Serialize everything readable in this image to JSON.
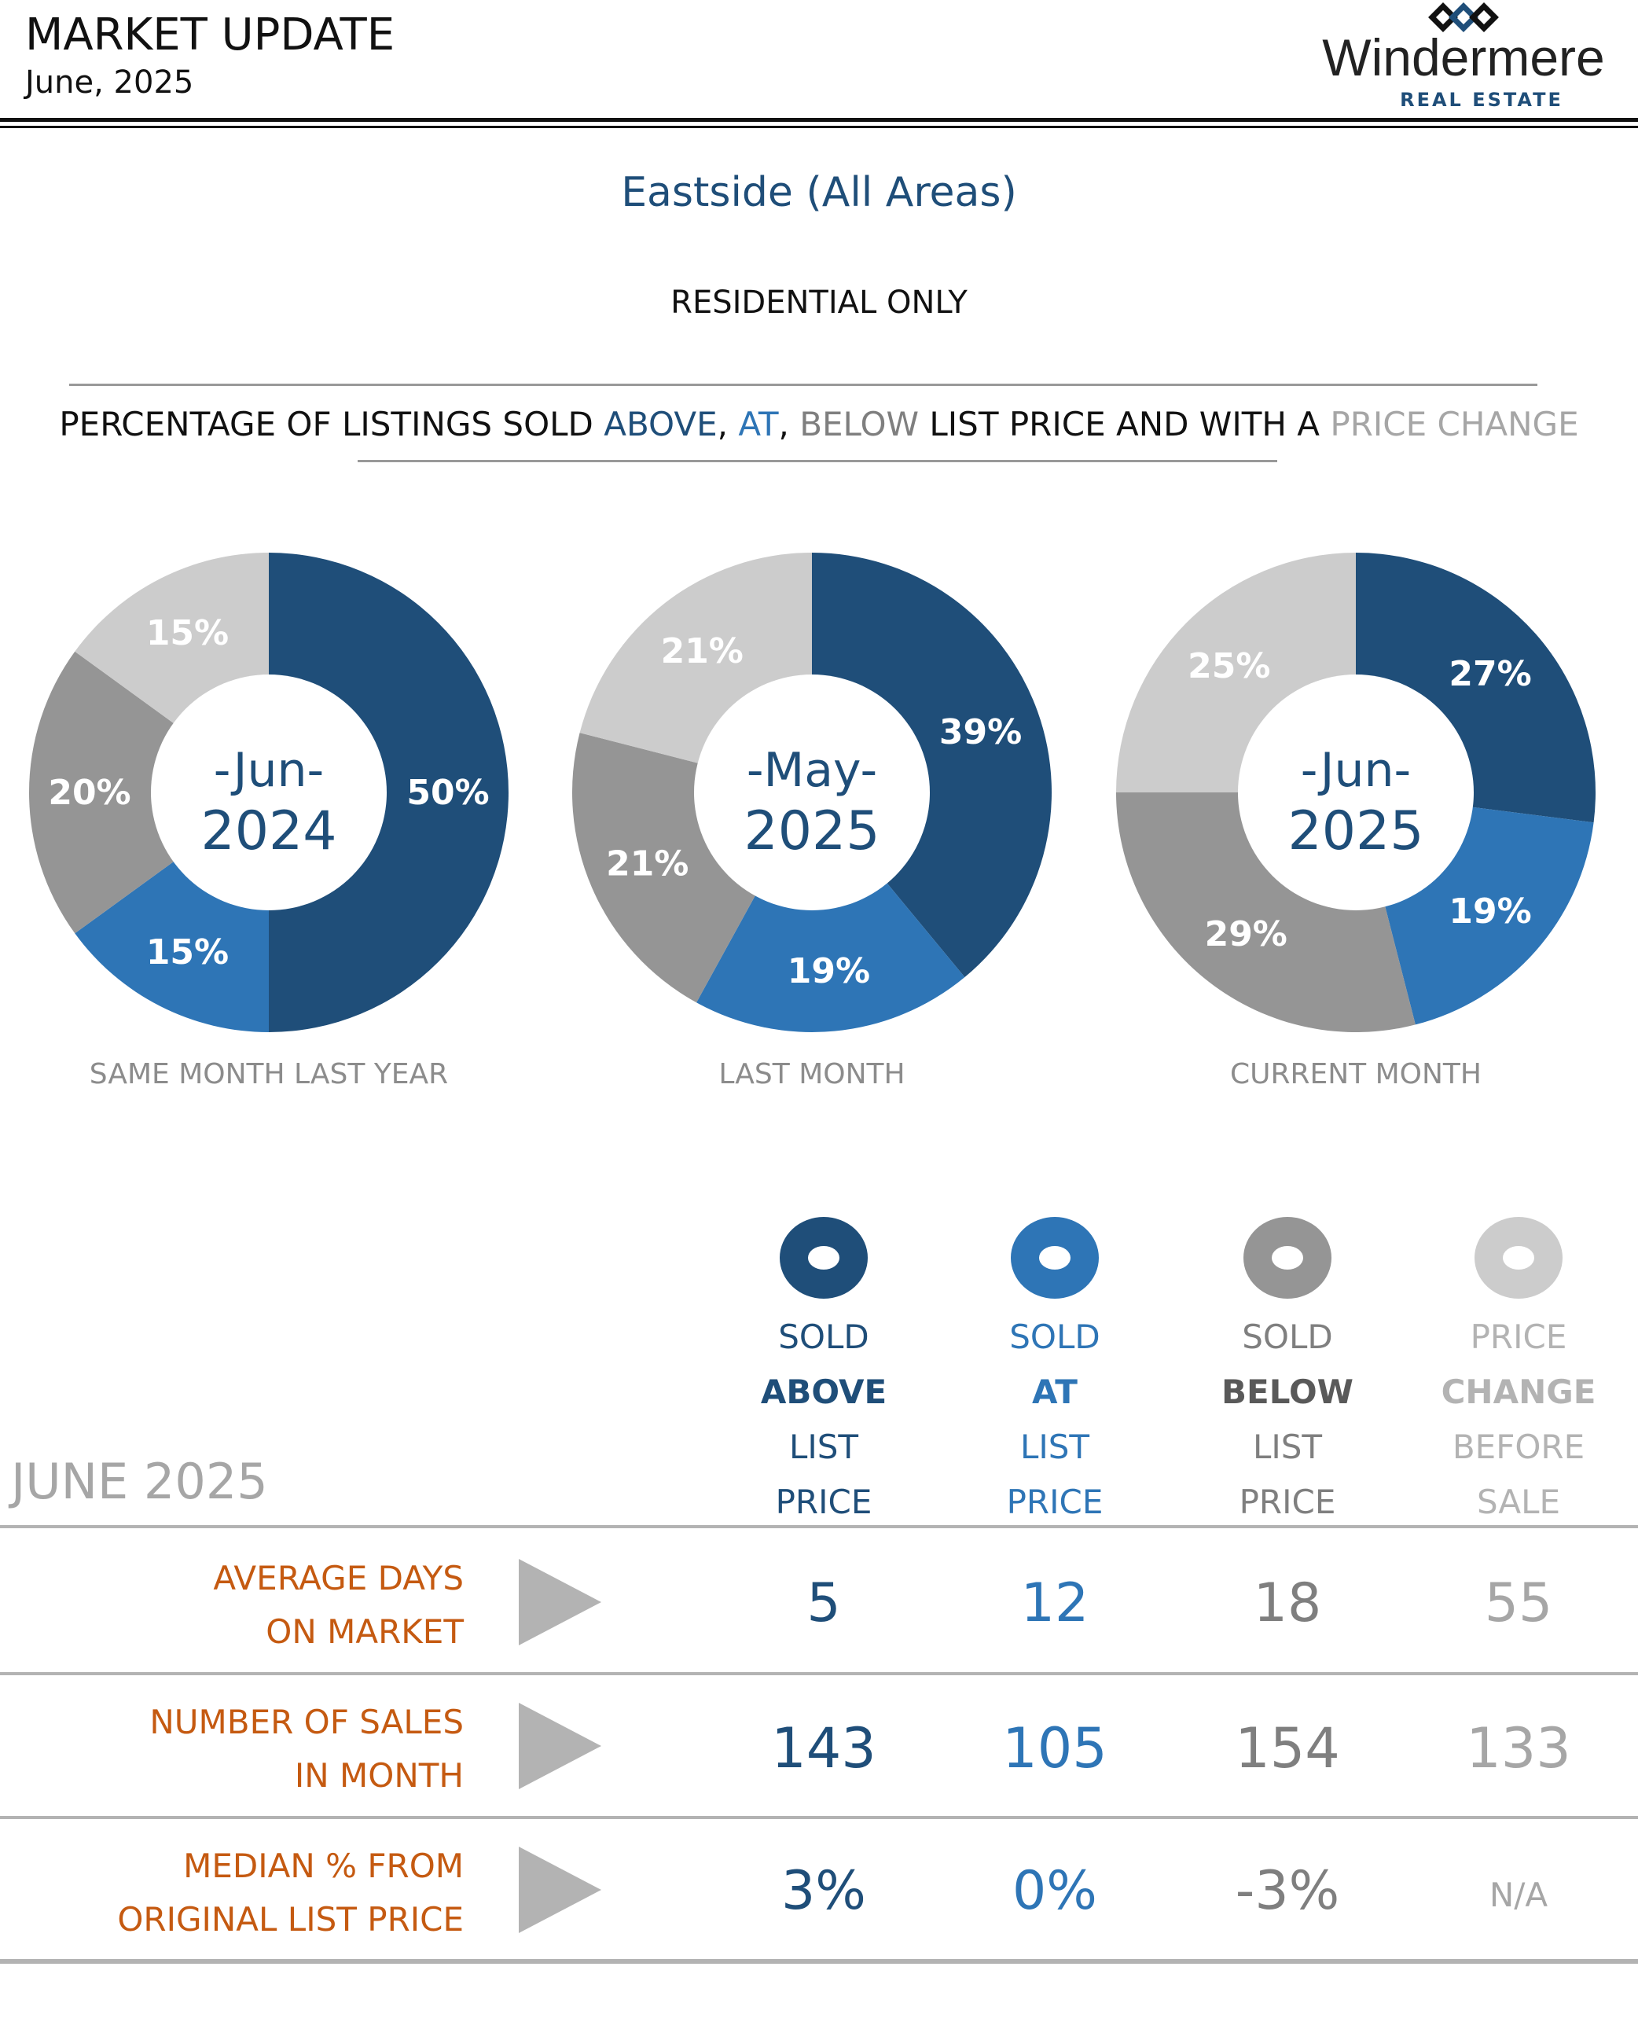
{
  "header": {
    "title": "MARKET UPDATE",
    "date": "June, 2025",
    "brand_name": "Windermere",
    "brand_tagline": "REAL ESTATE",
    "brand_icon": "windermere-diamond-logo-icon"
  },
  "area": "Eastside (All Areas)",
  "subtitle": "RESIDENTIAL ONLY",
  "section_title": {
    "prefix": "PERCENTAGE OF LISTINGS SOLD ",
    "above": "ABOVE",
    "sep1": ", ",
    "at": "AT",
    "sep2": ", ",
    "below": "BELOW",
    "middle": " LIST PRICE AND WITH A ",
    "change": "PRICE CHANGE"
  },
  "colors": {
    "above": "#1f4e79",
    "at": "#2e75b6",
    "below": "#959595",
    "change": "#cccccc",
    "accent_orange": "#c55a11"
  },
  "chart_data": [
    {
      "type": "pie",
      "center_label_top": "-Jun-",
      "center_label_bottom": "2024",
      "caption": "SAME MONTH LAST YEAR",
      "slices": [
        {
          "category": "above",
          "value": 50,
          "label": "50%"
        },
        {
          "category": "at",
          "value": 15,
          "label": "15%"
        },
        {
          "category": "below",
          "value": 20,
          "label": "20%"
        },
        {
          "category": "change",
          "value": 15,
          "label": "15%"
        }
      ]
    },
    {
      "type": "pie",
      "center_label_top": "-May-",
      "center_label_bottom": "2025",
      "caption": "LAST MONTH",
      "slices": [
        {
          "category": "above",
          "value": 39,
          "label": "39%"
        },
        {
          "category": "at",
          "value": 19,
          "label": "19%"
        },
        {
          "category": "below",
          "value": 21,
          "label": "21%"
        },
        {
          "category": "change",
          "value": 21,
          "label": "21%"
        }
      ]
    },
    {
      "type": "pie",
      "center_label_top": "-Jun-",
      "center_label_bottom": "2025",
      "caption": "CURRENT MONTH",
      "slices": [
        {
          "category": "above",
          "value": 27,
          "label": "27%"
        },
        {
          "category": "at",
          "value": 19,
          "label": "19%"
        },
        {
          "category": "below",
          "value": 29,
          "label": "29%"
        },
        {
          "category": "change",
          "value": 25,
          "label": "25%"
        }
      ]
    }
  ],
  "legend": [
    {
      "category": "above",
      "lines": [
        "SOLD",
        "ABOVE",
        "LIST",
        "PRICE"
      ],
      "bold_line": 1
    },
    {
      "category": "at",
      "lines": [
        "SOLD",
        "AT",
        "LIST",
        "PRICE"
      ],
      "bold_line": 1
    },
    {
      "category": "below",
      "lines": [
        "SOLD",
        "BELOW",
        "LIST",
        "PRICE"
      ],
      "bold_line": 1
    },
    {
      "category": "change",
      "lines": [
        "PRICE",
        "CHANGE",
        "BEFORE",
        "SALE"
      ],
      "bold_line": 1
    }
  ],
  "table": {
    "period_label": "JUNE 2025",
    "rows": [
      {
        "label_lines": [
          "AVERAGE DAYS",
          "ON MARKET"
        ],
        "values": [
          "5",
          "12",
          "18",
          "55"
        ]
      },
      {
        "label_lines": [
          "NUMBER OF SALES",
          "IN MONTH"
        ],
        "values": [
          "143",
          "105",
          "154",
          "133"
        ]
      },
      {
        "label_lines": [
          "MEDIAN % FROM",
          "ORIGINAL LIST PRICE"
        ],
        "values": [
          "3%",
          "0%",
          "-3%",
          "N/A"
        ]
      }
    ]
  }
}
